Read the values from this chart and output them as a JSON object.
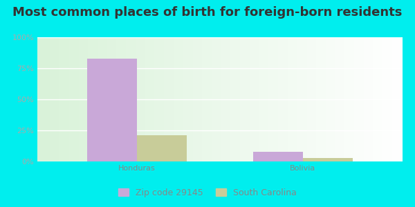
{
  "title": "Most common places of birth for foreign-born residents",
  "categories": [
    "Honduras",
    "Bolivia"
  ],
  "zip_values": [
    83,
    8
  ],
  "state_values": [
    21,
    3
  ],
  "zip_color": "#c9a8d8",
  "state_color": "#c8cc99",
  "zip_label": "Zip code 29145",
  "state_label": "South Carolina",
  "yticks": [
    0,
    25,
    50,
    75,
    100
  ],
  "ytick_labels": [
    "0%",
    "25%",
    "50%",
    "75%",
    "100%"
  ],
  "bar_width": 0.3,
  "outer_bg": "#00eeee",
  "chart_bg_left": "#d8efd0",
  "chart_bg_right": "#f0fff0",
  "title_fontsize": 13,
  "tick_fontsize": 8,
  "legend_fontsize": 9
}
